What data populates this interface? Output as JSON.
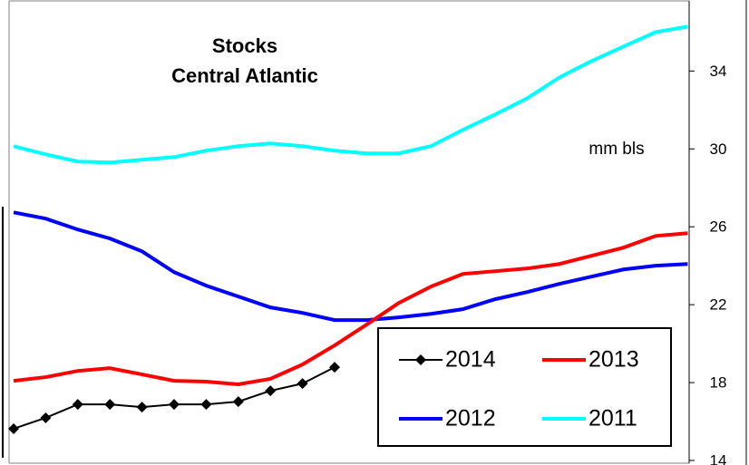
{
  "chart_data": {
    "type": "line",
    "title": [
      "Stocks",
      "Central Atlantic"
    ],
    "y_label": "mm bls",
    "ylim": [
      14,
      37.6
    ],
    "yticks": [
      14,
      18,
      22,
      26,
      30,
      34
    ],
    "legend": "lower right",
    "series": [
      {
        "name": "2014",
        "color": "#000000",
        "marker": "diamond",
        "values": [
          15.63,
          16.19,
          16.88,
          16.88,
          16.74,
          16.88,
          16.88,
          17.02,
          17.58,
          17.95,
          18.79
        ]
      },
      {
        "name": "2013",
        "color": "#ff0000",
        "values": [
          18.09,
          18.28,
          18.6,
          18.74,
          18.42,
          18.09,
          18.05,
          17.91,
          18.19,
          18.93,
          19.91,
          20.98,
          22.09,
          22.93,
          23.58,
          23.72,
          23.86,
          24.09,
          24.51,
          24.93,
          25.53,
          25.67
        ]
      },
      {
        "name": "2012",
        "color": "#0000ff",
        "values": [
          26.74,
          26.42,
          25.86,
          25.4,
          24.74,
          23.67,
          22.98,
          22.42,
          21.86,
          21.58,
          21.21,
          21.21,
          21.35,
          21.53,
          21.77,
          22.28,
          22.65,
          23.07,
          23.44,
          23.81,
          24.0,
          24.09
        ]
      },
      {
        "name": "2011",
        "color": "#00ffff",
        "values": [
          30.14,
          29.72,
          29.35,
          29.3,
          29.44,
          29.58,
          29.91,
          30.14,
          30.28,
          30.14,
          29.91,
          29.77,
          29.77,
          30.14,
          30.98,
          31.77,
          32.6,
          33.67,
          34.51,
          35.26,
          36.0,
          36.28
        ]
      }
    ]
  }
}
